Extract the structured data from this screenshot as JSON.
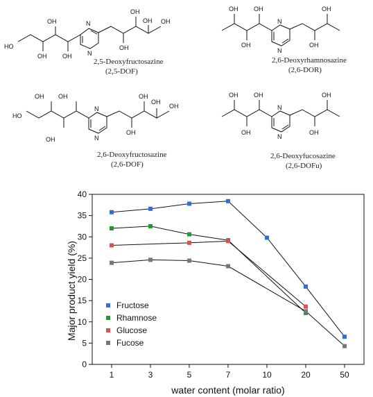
{
  "structures": [
    {
      "name": "2,5-Deoxyfructosazine",
      "abbr": "(2,5-DOF)"
    },
    {
      "name": "2,6-Deoxyrhamnosazine",
      "abbr": "(2,6-DOR)"
    },
    {
      "name": "2,6-Deoxyfructosazine",
      "abbr": "(2,6-DOF)"
    },
    {
      "name": "2,6-Deoxyfucosazine",
      "abbr": "(2,6-DOFu)"
    }
  ],
  "atoms": {
    "oh": "OH",
    "ho": "HO",
    "n": "N"
  },
  "chart_data": {
    "type": "line",
    "categories": [
      "1",
      "3",
      "5",
      "7",
      "10",
      "20",
      "50"
    ],
    "xlabel": "water content (molar ratio)",
    "ylabel": "Major product yield (%)",
    "ylim": [
      0,
      40
    ],
    "yticks": [
      0,
      5,
      10,
      15,
      20,
      25,
      30,
      35,
      40
    ],
    "grid": false,
    "legend_position": "lower-left",
    "series": [
      {
        "name": "Fructose",
        "color": "#2f6fd6",
        "values": [
          35.8,
          36.6,
          37.8,
          38.4,
          29.8,
          18.3,
          6.5
        ]
      },
      {
        "name": "Rhamnose",
        "color": "#1f9a2e",
        "values": [
          32.0,
          32.5,
          30.6,
          29.2,
          null,
          12.1,
          null
        ]
      },
      {
        "name": "Glucose",
        "color": "#e05050",
        "values": [
          28.0,
          null,
          28.6,
          29.0,
          null,
          13.6,
          null
        ]
      },
      {
        "name": "Fucose",
        "color": "#777777",
        "values": [
          23.9,
          24.6,
          24.4,
          23.1,
          null,
          12.5,
          4.3
        ]
      }
    ]
  }
}
